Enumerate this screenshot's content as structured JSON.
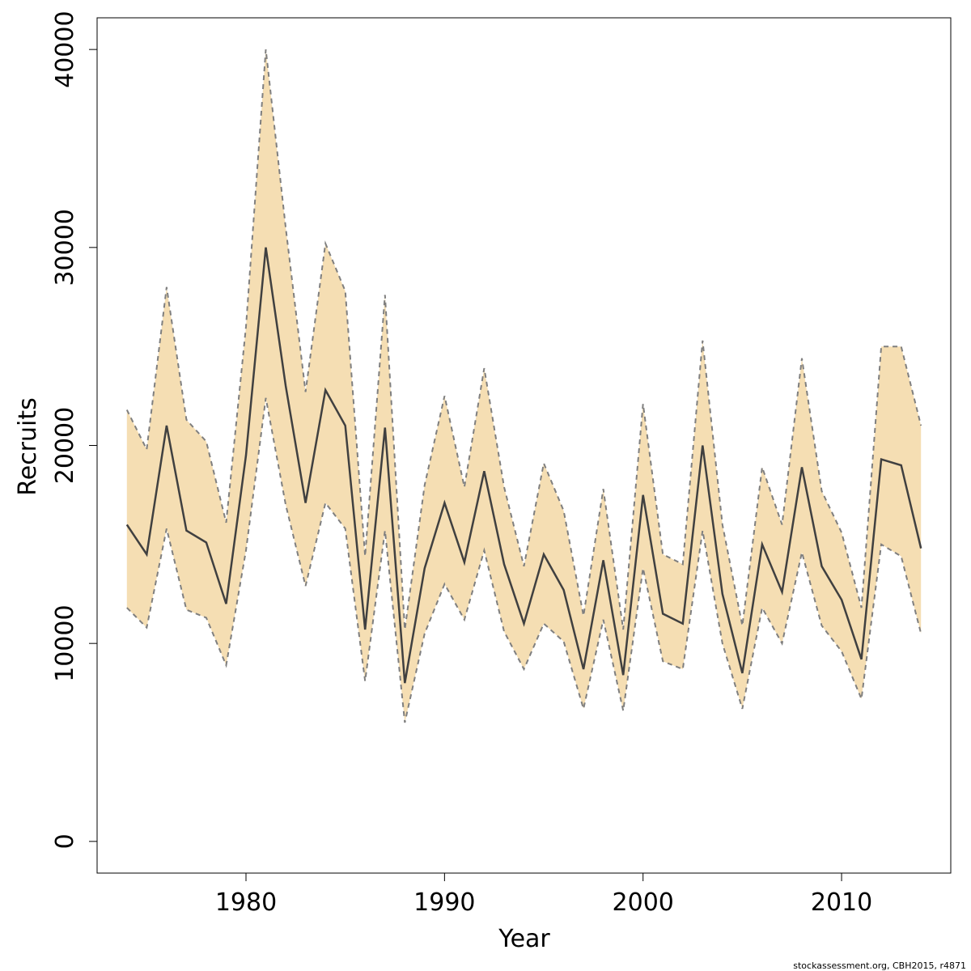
{
  "chart_data": {
    "type": "area",
    "xlabel": "Year",
    "ylabel": "Recruits",
    "xlim": [
      1972.5,
      2015.5
    ],
    "ylim": [
      -1600,
      41600
    ],
    "x_ticks": [
      1980,
      1990,
      2000,
      2010
    ],
    "y_ticks": [
      0,
      10000,
      20000,
      30000,
      40000
    ],
    "grid": false,
    "band_color": "#F5DEB3",
    "line_color": "#404040",
    "bound_color": "#7f7f7f",
    "x": [
      1974,
      1975,
      1976,
      1977,
      1978,
      1979,
      1980,
      1981,
      1982,
      1983,
      1984,
      1985,
      1986,
      1987,
      1988,
      1989,
      1990,
      1991,
      1992,
      1993,
      1994,
      1995,
      1996,
      1997,
      1998,
      1999,
      2000,
      2001,
      2002,
      2003,
      2004,
      2005,
      2006,
      2007,
      2008,
      2009,
      2010,
      2011,
      2012,
      2013,
      2014
    ],
    "series": [
      {
        "values": [
          16000,
          14500,
          21000,
          15700,
          15100,
          12000,
          19500,
          30000,
          23000,
          17100,
          22800,
          21000,
          10700,
          20900,
          8000,
          13800,
          17100,
          14100,
          18700,
          14000,
          11000,
          14500,
          12700,
          8700,
          14200,
          8400,
          17500,
          11500,
          11000,
          20000,
          12500,
          8500,
          15000,
          12600,
          18900,
          13900,
          12200,
          9200,
          19300,
          19000,
          14800
        ]
      },
      {
        "values": [
          21800,
          19800,
          28000,
          21300,
          20200,
          16100,
          26000,
          40000,
          31000,
          22700,
          30200,
          27800,
          14400,
          27600,
          10700,
          18000,
          22500,
          17900,
          23900,
          17900,
          13900,
          19100,
          16700,
          11400,
          17800,
          10700,
          22100,
          14500,
          14000,
          25300,
          16000,
          10900,
          18900,
          16000,
          24400,
          17700,
          15600,
          11800,
          25000,
          25000,
          21000
        ]
      },
      {
        "values": [
          11800,
          10800,
          15800,
          11700,
          11300,
          8900,
          14700,
          22400,
          17000,
          12900,
          17100,
          15800,
          8100,
          15700,
          6000,
          10500,
          13000,
          11200,
          14700,
          10600,
          8700,
          11000,
          10100,
          6700,
          11200,
          6600,
          13800,
          9100,
          8700,
          15700,
          10000,
          6700,
          11800,
          10000,
          14600,
          10900,
          9600,
          7200,
          15000,
          14400,
          10500
        ]
      }
    ],
    "credit": "stockassessment.org, CBH2015, r4871"
  }
}
